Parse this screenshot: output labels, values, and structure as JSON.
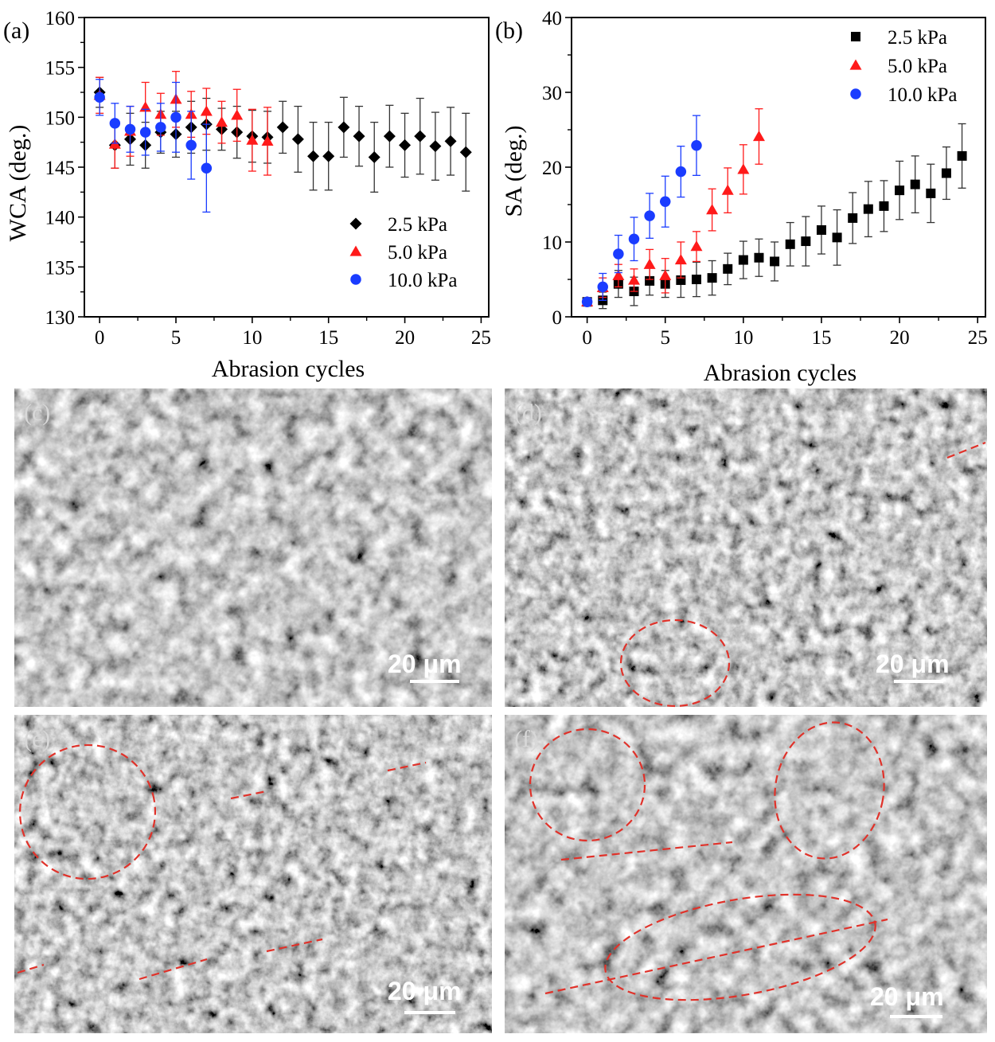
{
  "chart_data": [
    {
      "type": "scatter",
      "panel_label": "(a)",
      "title": "",
      "xlabel": "Abrasion cycles",
      "ylabel": "WCA (deg.)",
      "xlim": [
        -1,
        25.5
      ],
      "ylim": [
        130,
        160
      ],
      "xticks": [
        0,
        5,
        10,
        15,
        20,
        25
      ],
      "yticks": [
        130,
        135,
        140,
        145,
        150,
        155,
        160
      ],
      "legend_position": "bottom-right",
      "series": [
        {
          "name": "2.5 kPa",
          "marker": "diamond",
          "color": "#000000",
          "x": [
            0,
            1,
            2,
            3,
            4,
            5,
            6,
            7,
            8,
            9,
            10,
            11,
            12,
            13,
            14,
            15,
            16,
            17,
            18,
            19,
            20,
            21,
            22,
            23,
            24
          ],
          "y": [
            152.5,
            147.2,
            147.8,
            147.2,
            148.5,
            148.3,
            149.0,
            149.3,
            148.8,
            148.5,
            148.1,
            148.0,
            149.0,
            147.8,
            146.1,
            146.1,
            149.0,
            148.1,
            146.0,
            148.1,
            147.2,
            148.1,
            147.1,
            147.6,
            146.5
          ],
          "err": [
            1.5,
            2.3,
            2.6,
            2.3,
            2.1,
            2.3,
            2.6,
            2.6,
            2.1,
            2.6,
            2.6,
            2.6,
            2.6,
            3.3,
            3.4,
            3.4,
            3.0,
            3.0,
            3.5,
            3.1,
            3.2,
            3.8,
            3.4,
            3.4,
            3.9
          ]
        },
        {
          "name": "5.0 kPa",
          "marker": "triangle",
          "color": "#ff1a1a",
          "x": [
            0,
            1,
            2,
            3,
            4,
            5,
            6,
            7,
            8,
            9,
            10,
            11
          ],
          "y": [
            152.2,
            147.3,
            148.6,
            151.0,
            150.3,
            151.8,
            150.3,
            150.6,
            149.5,
            150.2,
            147.7,
            147.6
          ],
          "err": [
            1.8,
            2.4,
            2.5,
            2.5,
            2.1,
            2.8,
            2.3,
            2.3,
            2.1,
            2.6,
            3.1,
            3.4
          ]
        },
        {
          "name": "10.0 kPa",
          "marker": "circle",
          "color": "#1a3cff",
          "x": [
            0,
            1,
            2,
            3,
            4,
            5,
            6,
            7
          ],
          "y": [
            152.0,
            149.4,
            148.8,
            148.5,
            149.0,
            150.0,
            147.2,
            144.9
          ],
          "err": [
            1.8,
            2.0,
            2.3,
            2.3,
            2.4,
            3.5,
            3.4,
            4.4
          ]
        }
      ]
    },
    {
      "type": "scatter",
      "panel_label": "(b)",
      "title": "",
      "xlabel": "Abrasion cycles",
      "ylabel": "SA (deg.)",
      "xlim": [
        -1,
        25.5
      ],
      "ylim": [
        0,
        40
      ],
      "xticks": [
        0,
        5,
        10,
        15,
        20,
        25
      ],
      "yticks": [
        0,
        10,
        20,
        30,
        40
      ],
      "legend_position": "top-right",
      "series": [
        {
          "name": "2.5 kPa",
          "marker": "square",
          "color": "#000000",
          "x": [
            0,
            1,
            2,
            3,
            4,
            5,
            6,
            7,
            8,
            9,
            10,
            11,
            12,
            13,
            14,
            15,
            16,
            17,
            18,
            19,
            20,
            21,
            22,
            23,
            24
          ],
          "y": [
            2.0,
            2.2,
            4.4,
            3.4,
            4.8,
            4.4,
            4.9,
            5.0,
            5.2,
            6.4,
            7.6,
            7.9,
            7.4,
            9.7,
            10.1,
            11.6,
            10.6,
            13.2,
            14.4,
            14.8,
            16.9,
            17.7,
            16.5,
            19.2,
            21.5
          ],
          "err": [
            0.5,
            1.1,
            1.8,
            1.9,
            1.9,
            1.8,
            2.3,
            2.3,
            2.3,
            2.1,
            2.5,
            2.5,
            2.6,
            2.9,
            3.3,
            3.2,
            3.7,
            3.4,
            3.7,
            3.4,
            3.9,
            3.8,
            3.9,
            3.5,
            4.3
          ]
        },
        {
          "name": "5.0 kPa",
          "marker": "triangle",
          "color": "#ff1a1a",
          "x": [
            0,
            1,
            2,
            3,
            4,
            5,
            6,
            7,
            8,
            9,
            10,
            11
          ],
          "y": [
            2.0,
            3.9,
            5.5,
            4.9,
            7.0,
            5.5,
            7.6,
            9.4,
            14.3,
            16.9,
            19.7,
            24.1
          ],
          "err": [
            0.5,
            1.3,
            1.5,
            1.5,
            2.0,
            2.3,
            2.4,
            2.0,
            2.8,
            3.0,
            3.3,
            3.7
          ]
        },
        {
          "name": "10.0 kPa",
          "marker": "circle",
          "color": "#1a3cff",
          "x": [
            0,
            1,
            2,
            3,
            4,
            5,
            6,
            7
          ],
          "y": [
            2.0,
            4.0,
            8.4,
            10.4,
            13.5,
            15.4,
            19.4,
            22.9
          ],
          "err": [
            0.5,
            1.8,
            2.5,
            2.9,
            3.0,
            3.4,
            3.4,
            4.0
          ]
        }
      ]
    }
  ],
  "sem_panels": [
    {
      "label": "(c)",
      "scale_bar": "20 μm"
    },
    {
      "label": "(d)",
      "scale_bar": "20 μm"
    },
    {
      "label": "(e)",
      "scale_bar": "20 μm"
    },
    {
      "label": "(f)",
      "scale_bar": "20 μm"
    }
  ],
  "colors": {
    "black": "#000000",
    "red": "#ff1a1a",
    "blue": "#1a3cff",
    "annotation": "#e0322a"
  }
}
